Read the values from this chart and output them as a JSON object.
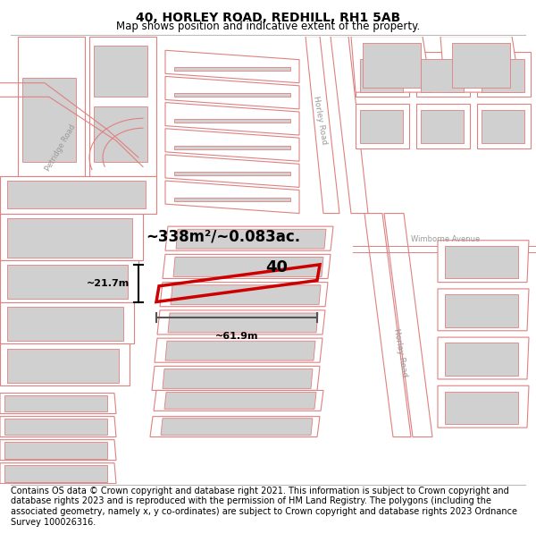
{
  "title_line1": "40, HORLEY ROAD, REDHILL, RH1 5AB",
  "title_line2": "Map shows position and indicative extent of the property.",
  "footer_text": "Contains OS data © Crown copyright and database right 2021. This information is subject to Crown copyright and database rights 2023 and is reproduced with the permission of HM Land Registry. The polygons (including the associated geometry, namely x, y co-ordinates) are subject to Crown copyright and database rights 2023 Ordnance Survey 100026316.",
  "area_label": "~338m²/~0.083ac.",
  "number_label": "40",
  "dim_width": "~61.9m",
  "dim_height": "~21.7m",
  "bg_color": "#ffffff",
  "parcel_fill": "#ffffff",
  "building_fill": "#d8d8d8",
  "parcel_edge": "#e8808080",
  "highlight_color": "#cc0000",
  "road_label_color": "#999999",
  "title_fontsize": 10,
  "subtitle_fontsize": 8.5,
  "footer_fontsize": 7.0
}
